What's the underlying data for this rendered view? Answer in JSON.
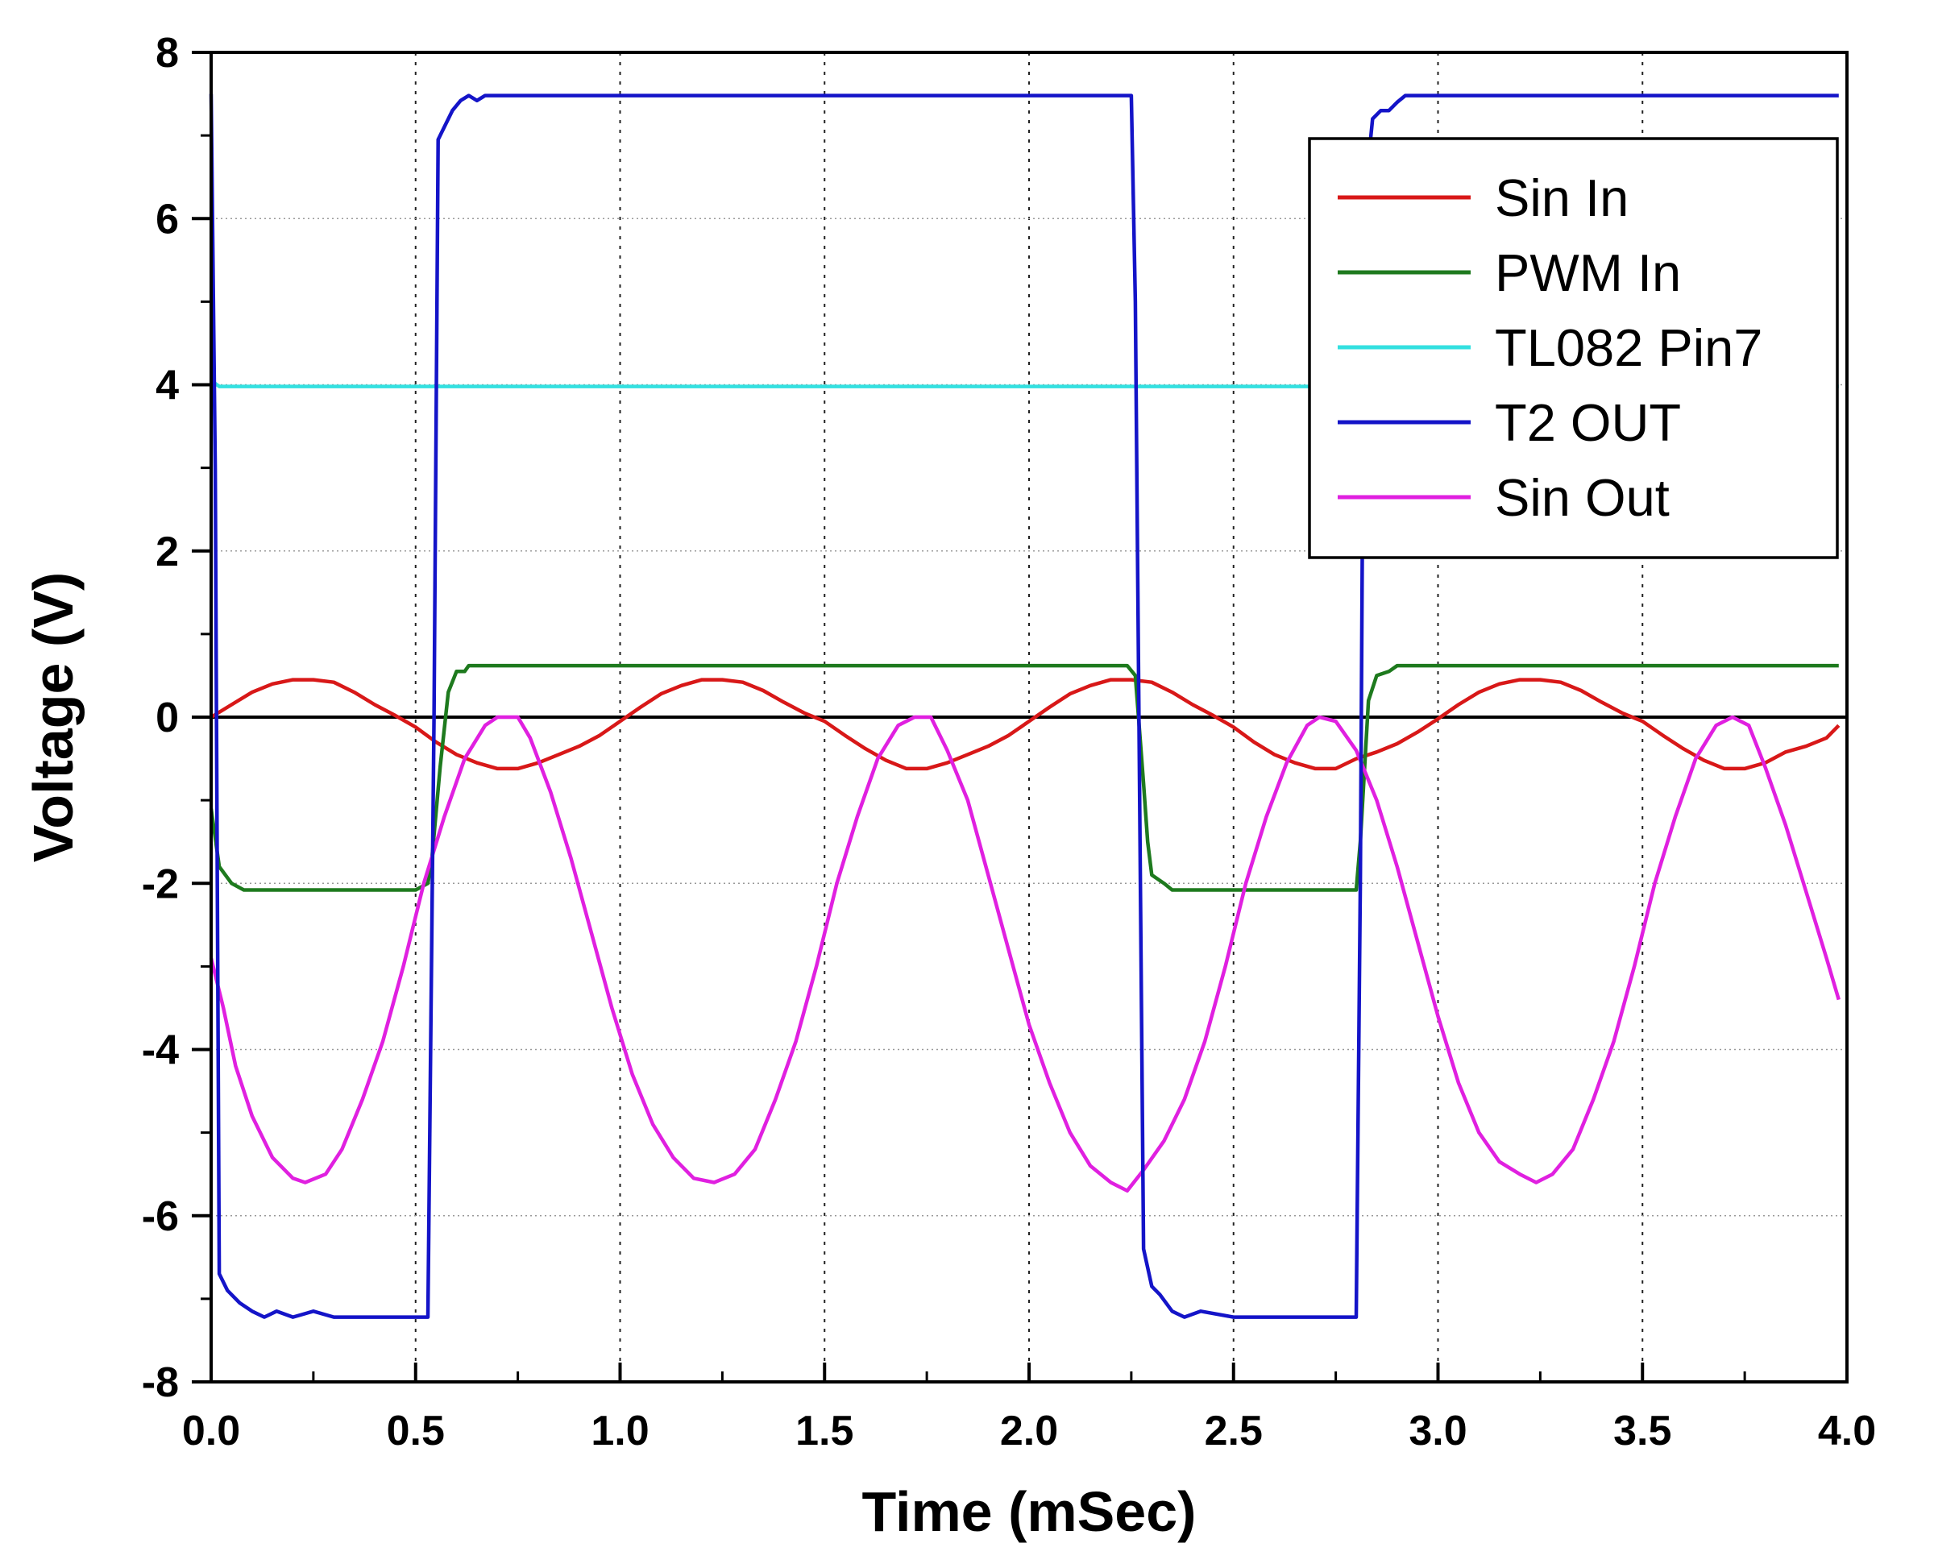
{
  "chart_data": {
    "type": "line",
    "title": "",
    "xlabel": "Time (mSec)",
    "ylabel": "Voltage (V)",
    "xlim": [
      0,
      4
    ],
    "ylim": [
      -8,
      8
    ],
    "x_ticks": [
      "0.0",
      "0.5",
      "1.0",
      "1.5",
      "2.0",
      "2.5",
      "3.0",
      "3.5",
      "4.0"
    ],
    "y_ticks": [
      "-8",
      "-6",
      "-4",
      "-2",
      "0",
      "2",
      "4",
      "6",
      "8"
    ],
    "grid": "dotted",
    "zero_line": true,
    "legend_position": "top-right",
    "series": [
      {
        "name": "Sin In",
        "color": "#d81818",
        "points": [
          [
            0,
            0
          ],
          [
            0.05,
            0.15
          ],
          [
            0.1,
            0.3
          ],
          [
            0.15,
            0.4
          ],
          [
            0.2,
            0.45
          ],
          [
            0.25,
            0.45
          ],
          [
            0.3,
            0.42
          ],
          [
            0.35,
            0.3
          ],
          [
            0.4,
            0.15
          ],
          [
            0.45,
            0.02
          ],
          [
            0.5,
            -0.12
          ],
          [
            0.55,
            -0.3
          ],
          [
            0.6,
            -0.45
          ],
          [
            0.65,
            -0.55
          ],
          [
            0.7,
            -0.62
          ],
          [
            0.75,
            -0.62
          ],
          [
            0.8,
            -0.55
          ],
          [
            0.85,
            -0.45
          ],
          [
            0.9,
            -0.35
          ],
          [
            0.95,
            -0.22
          ],
          [
            1.0,
            -0.05
          ],
          [
            1.05,
            0.12
          ],
          [
            1.1,
            0.28
          ],
          [
            1.15,
            0.38
          ],
          [
            1.2,
            0.45
          ],
          [
            1.25,
            0.45
          ],
          [
            1.3,
            0.42
          ],
          [
            1.35,
            0.32
          ],
          [
            1.4,
            0.18
          ],
          [
            1.45,
            0.05
          ],
          [
            1.5,
            -0.05
          ],
          [
            1.55,
            -0.22
          ],
          [
            1.6,
            -0.38
          ],
          [
            1.65,
            -0.52
          ],
          [
            1.7,
            -0.62
          ],
          [
            1.75,
            -0.62
          ],
          [
            1.8,
            -0.55
          ],
          [
            1.85,
            -0.45
          ],
          [
            1.9,
            -0.35
          ],
          [
            1.95,
            -0.22
          ],
          [
            2.0,
            -0.05
          ],
          [
            2.05,
            0.12
          ],
          [
            2.1,
            0.28
          ],
          [
            2.15,
            0.38
          ],
          [
            2.2,
            0.45
          ],
          [
            2.25,
            0.45
          ],
          [
            2.3,
            0.42
          ],
          [
            2.35,
            0.3
          ],
          [
            2.4,
            0.15
          ],
          [
            2.45,
            0.02
          ],
          [
            2.5,
            -0.12
          ],
          [
            2.55,
            -0.3
          ],
          [
            2.6,
            -0.45
          ],
          [
            2.65,
            -0.55
          ],
          [
            2.7,
            -0.62
          ],
          [
            2.75,
            -0.62
          ],
          [
            2.8,
            -0.5
          ],
          [
            2.85,
            -0.42
          ],
          [
            2.9,
            -0.32
          ],
          [
            2.95,
            -0.18
          ],
          [
            3.0,
            -0.02
          ],
          [
            3.05,
            0.15
          ],
          [
            3.1,
            0.3
          ],
          [
            3.15,
            0.4
          ],
          [
            3.2,
            0.45
          ],
          [
            3.25,
            0.45
          ],
          [
            3.3,
            0.42
          ],
          [
            3.35,
            0.32
          ],
          [
            3.4,
            0.18
          ],
          [
            3.45,
            0.05
          ],
          [
            3.5,
            -0.05
          ],
          [
            3.55,
            -0.22
          ],
          [
            3.6,
            -0.38
          ],
          [
            3.65,
            -0.52
          ],
          [
            3.7,
            -0.62
          ],
          [
            3.75,
            -0.62
          ],
          [
            3.8,
            -0.55
          ],
          [
            3.85,
            -0.42
          ],
          [
            3.9,
            -0.35
          ],
          [
            3.95,
            -0.25
          ],
          [
            3.98,
            -0.1
          ]
        ]
      },
      {
        "name": "PWM In",
        "color": "#1e7a1e",
        "points": [
          [
            0,
            -1.1
          ],
          [
            0.02,
            -1.8
          ],
          [
            0.05,
            -2.0
          ],
          [
            0.08,
            -2.08
          ],
          [
            0.5,
            -2.08
          ],
          [
            0.53,
            -2.0
          ],
          [
            0.54,
            -1.7
          ],
          [
            0.56,
            -0.6
          ],
          [
            0.58,
            0.3
          ],
          [
            0.6,
            0.55
          ],
          [
            0.62,
            0.55
          ],
          [
            0.63,
            0.62
          ],
          [
            2.24,
            0.62
          ],
          [
            2.26,
            0.5
          ],
          [
            2.28,
            -0.8
          ],
          [
            2.29,
            -1.5
          ],
          [
            2.3,
            -1.9
          ],
          [
            2.33,
            -2.0
          ],
          [
            2.35,
            -2.08
          ],
          [
            2.8,
            -2.08
          ],
          [
            2.81,
            -1.5
          ],
          [
            2.83,
            0.2
          ],
          [
            2.85,
            0.5
          ],
          [
            2.88,
            0.55
          ],
          [
            2.9,
            0.62
          ],
          [
            3.98,
            0.62
          ]
        ]
      },
      {
        "name": "TL082 Pin7",
        "color": "#33e0e0",
        "points": [
          [
            0,
            4.05
          ],
          [
            0.02,
            3.98
          ],
          [
            3.98,
            3.98
          ]
        ]
      },
      {
        "name": "T2 OUT",
        "color": "#1414c8",
        "points": [
          [
            0,
            7.5
          ],
          [
            0.01,
            3.0
          ],
          [
            0.02,
            -6.7
          ],
          [
            0.04,
            -6.9
          ],
          [
            0.07,
            -7.05
          ],
          [
            0.1,
            -7.15
          ],
          [
            0.13,
            -7.22
          ],
          [
            0.16,
            -7.15
          ],
          [
            0.2,
            -7.22
          ],
          [
            0.25,
            -7.15
          ],
          [
            0.3,
            -7.22
          ],
          [
            0.53,
            -7.22
          ],
          [
            0.545,
            0.0
          ],
          [
            0.555,
            6.95
          ],
          [
            0.57,
            7.1
          ],
          [
            0.59,
            7.3
          ],
          [
            0.61,
            7.42
          ],
          [
            0.63,
            7.48
          ],
          [
            0.65,
            7.42
          ],
          [
            0.67,
            7.48
          ],
          [
            2.25,
            7.48
          ],
          [
            2.26,
            5.0
          ],
          [
            2.28,
            -6.4
          ],
          [
            2.3,
            -6.85
          ],
          [
            2.32,
            -6.95
          ],
          [
            2.35,
            -7.15
          ],
          [
            2.38,
            -7.22
          ],
          [
            2.42,
            -7.15
          ],
          [
            2.5,
            -7.22
          ],
          [
            2.8,
            -7.22
          ],
          [
            2.81,
            -2.0
          ],
          [
            2.82,
            6.2
          ],
          [
            2.84,
            7.2
          ],
          [
            2.86,
            7.3
          ],
          [
            2.88,
            7.3
          ],
          [
            2.9,
            7.4
          ],
          [
            2.92,
            7.48
          ],
          [
            3.98,
            7.48
          ]
        ]
      },
      {
        "name": "Sin Out",
        "color": "#e020e0",
        "points": [
          [
            0,
            -2.9
          ],
          [
            0.03,
            -3.5
          ],
          [
            0.06,
            -4.2
          ],
          [
            0.1,
            -4.8
          ],
          [
            0.15,
            -5.3
          ],
          [
            0.2,
            -5.55
          ],
          [
            0.23,
            -5.6
          ],
          [
            0.28,
            -5.5
          ],
          [
            0.32,
            -5.2
          ],
          [
            0.37,
            -4.6
          ],
          [
            0.42,
            -3.9
          ],
          [
            0.47,
            -3.0
          ],
          [
            0.52,
            -2.0
          ],
          [
            0.57,
            -1.2
          ],
          [
            0.62,
            -0.5
          ],
          [
            0.67,
            -0.1
          ],
          [
            0.7,
            0.0
          ],
          [
            0.75,
            0.0
          ],
          [
            0.78,
            -0.25
          ],
          [
            0.83,
            -0.9
          ],
          [
            0.88,
            -1.7
          ],
          [
            0.93,
            -2.6
          ],
          [
            0.98,
            -3.5
          ],
          [
            1.03,
            -4.3
          ],
          [
            1.08,
            -4.9
          ],
          [
            1.13,
            -5.3
          ],
          [
            1.18,
            -5.55
          ],
          [
            1.23,
            -5.6
          ],
          [
            1.28,
            -5.5
          ],
          [
            1.33,
            -5.2
          ],
          [
            1.38,
            -4.6
          ],
          [
            1.43,
            -3.9
          ],
          [
            1.48,
            -3.0
          ],
          [
            1.53,
            -2.0
          ],
          [
            1.58,
            -1.2
          ],
          [
            1.63,
            -0.5
          ],
          [
            1.68,
            -0.1
          ],
          [
            1.72,
            0.0
          ],
          [
            1.76,
            0.0
          ],
          [
            1.8,
            -0.4
          ],
          [
            1.85,
            -1.0
          ],
          [
            1.9,
            -1.9
          ],
          [
            1.95,
            -2.8
          ],
          [
            2.0,
            -3.7
          ],
          [
            2.05,
            -4.4
          ],
          [
            2.1,
            -5.0
          ],
          [
            2.15,
            -5.4
          ],
          [
            2.2,
            -5.6
          ],
          [
            2.24,
            -5.7
          ],
          [
            2.28,
            -5.45
          ],
          [
            2.33,
            -5.1
          ],
          [
            2.38,
            -4.6
          ],
          [
            2.43,
            -3.9
          ],
          [
            2.48,
            -3.0
          ],
          [
            2.53,
            -2.0
          ],
          [
            2.58,
            -1.2
          ],
          [
            2.63,
            -0.55
          ],
          [
            2.68,
            -0.1
          ],
          [
            2.71,
            0.0
          ],
          [
            2.75,
            -0.05
          ],
          [
            2.8,
            -0.4
          ],
          [
            2.85,
            -1.0
          ],
          [
            2.9,
            -1.8
          ],
          [
            2.95,
            -2.7
          ],
          [
            3.0,
            -3.6
          ],
          [
            3.05,
            -4.4
          ],
          [
            3.1,
            -5.0
          ],
          [
            3.15,
            -5.35
          ],
          [
            3.2,
            -5.5
          ],
          [
            3.24,
            -5.6
          ],
          [
            3.28,
            -5.5
          ],
          [
            3.33,
            -5.2
          ],
          [
            3.38,
            -4.6
          ],
          [
            3.43,
            -3.9
          ],
          [
            3.48,
            -3.0
          ],
          [
            3.53,
            -2.0
          ],
          [
            3.58,
            -1.2
          ],
          [
            3.63,
            -0.5
          ],
          [
            3.68,
            -0.1
          ],
          [
            3.72,
            0.0
          ],
          [
            3.76,
            -0.1
          ],
          [
            3.8,
            -0.6
          ],
          [
            3.85,
            -1.3
          ],
          [
            3.9,
            -2.1
          ],
          [
            3.95,
            -2.9
          ],
          [
            3.98,
            -3.4
          ]
        ]
      }
    ]
  }
}
